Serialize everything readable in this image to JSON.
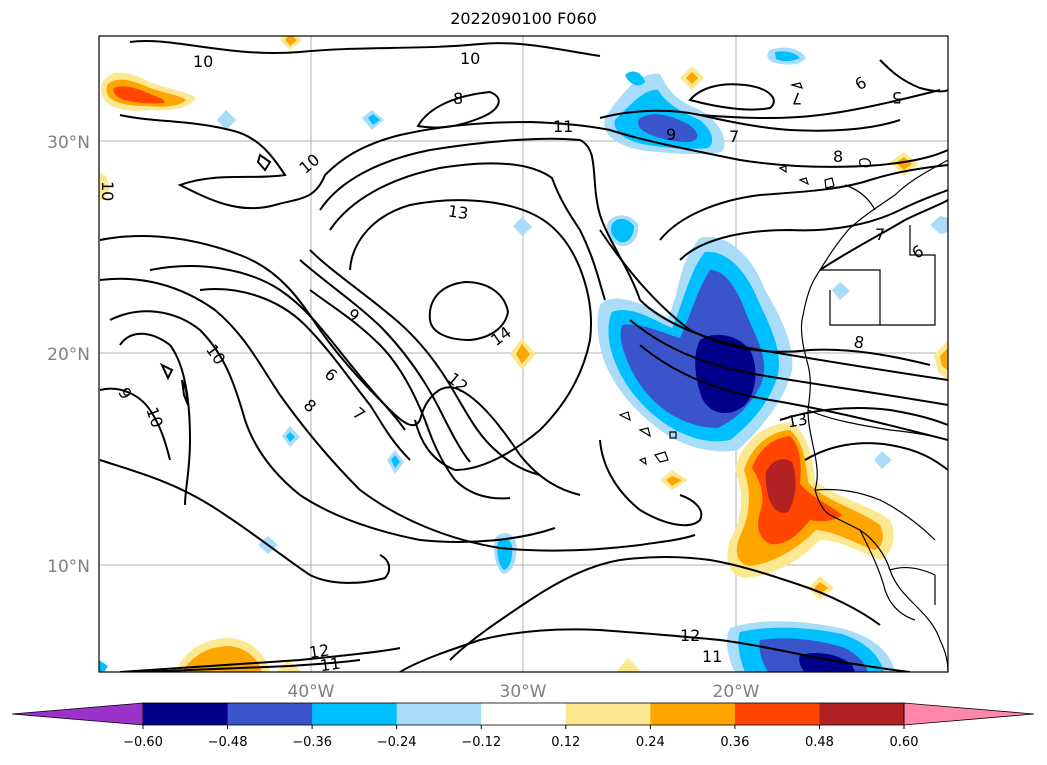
{
  "title": "2022090100 F060",
  "axes": {
    "lat_ticks": [
      "30°N",
      "20°N",
      "10°N"
    ],
    "lon_ticks": [
      "40°W",
      "30°W",
      "20°W"
    ]
  },
  "colorbar": {
    "levels": [
      "−0.60",
      "−0.48",
      "−0.36",
      "−0.24",
      "−0.12",
      "0.12",
      "0.24",
      "0.36",
      "0.48",
      "0.60"
    ],
    "colors": [
      "#9933cc",
      "#00008b",
      "#3a55cc",
      "#00bfff",
      "#a8dcf8",
      "#ffffff",
      "#fbe890",
      "#ffa500",
      "#ff4500",
      "#b22222",
      "#ff88aa"
    ],
    "extend": "both"
  },
  "contour_labels": [
    "10",
    "10",
    "10",
    "10",
    "8",
    "11",
    "9",
    "7",
    "6",
    "5",
    "7",
    "8",
    "6",
    "7",
    "13",
    "14",
    "9",
    "12",
    "6",
    "7",
    "8",
    "10",
    "10",
    "9",
    "8",
    "13",
    "12",
    "11",
    "12",
    "11"
  ]
}
